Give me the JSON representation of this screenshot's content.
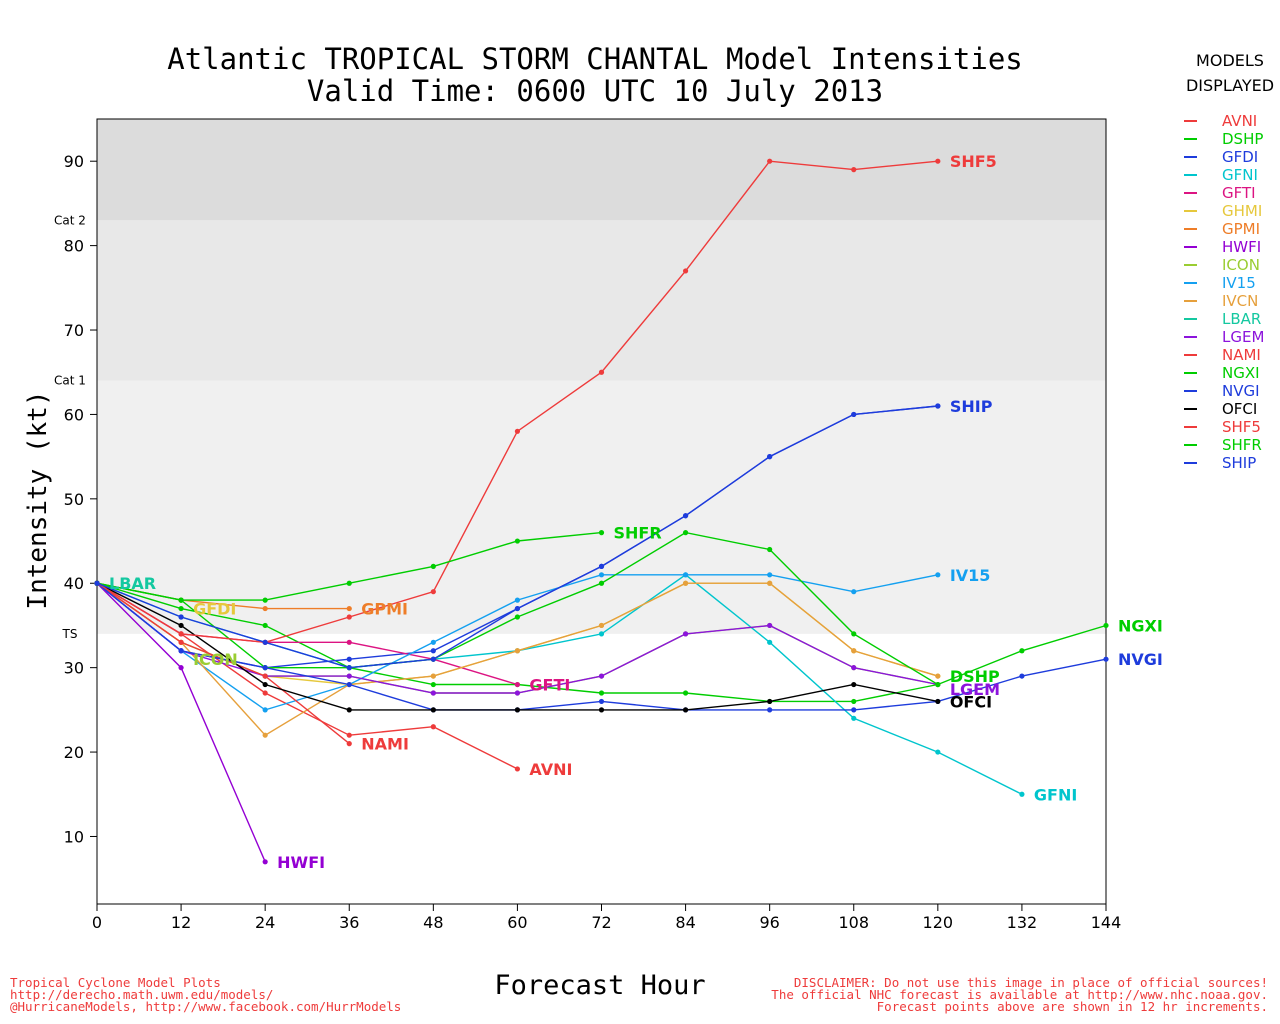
{
  "title": "Atlantic TROPICAL STORM CHANTAL Model Intensities",
  "subtitle": "Valid Time: 0600 UTC 10 July 2013",
  "legend": {
    "header_line1": "MODELS",
    "header_line2": "DISPLAYED",
    "items": [
      {
        "name": "AVNI",
        "color": "#ee3b3b"
      },
      {
        "name": "DSHP",
        "color": "#00cd00"
      },
      {
        "name": "GFDI",
        "color": "#1e3cdc"
      },
      {
        "name": "GFNI",
        "color": "#00c5cd"
      },
      {
        "name": "GFTI",
        "color": "#dc1482"
      },
      {
        "name": "GHMI",
        "color": "#e6c83c"
      },
      {
        "name": "GPMI",
        "color": "#ee7d28"
      },
      {
        "name": "HWFI",
        "color": "#9400d3"
      },
      {
        "name": "ICON",
        "color": "#9acd32"
      },
      {
        "name": "IV15",
        "color": "#14a0f0"
      },
      {
        "name": "IVCN",
        "color": "#e6a03c"
      },
      {
        "name": "LBAR",
        "color": "#14c8a0"
      },
      {
        "name": "LGEM",
        "color": "#8c14dc"
      },
      {
        "name": "NAMI",
        "color": "#ee3b3b"
      },
      {
        "name": "NGXI",
        "color": "#00cd00"
      },
      {
        "name": "NVGI",
        "color": "#1e3cdc"
      },
      {
        "name": "OFCI",
        "color": "#000000"
      },
      {
        "name": "SHF5",
        "color": "#ee3b3b"
      },
      {
        "name": "SHFR",
        "color": "#00cd00"
      },
      {
        "name": "SHIP",
        "color": "#1e3cdc"
      }
    ]
  },
  "footer": {
    "left": [
      "Tropical Cyclone Model Plots",
      "http://derecho.math.uwm.edu/models/",
      "@HurricaneModels, http://www.facebook.com/HurrModels"
    ],
    "right": [
      "DISCLAIMER: Do not use this image in place of official sources!",
      "The official NHC forecast is available at http://www.nhc.noaa.gov.",
      "Forecast points above are shown in 12 hr increments."
    ]
  },
  "chart_data": {
    "type": "line",
    "xlabel": "Forecast Hour",
    "ylabel": "Intensity (kt)",
    "xlim": [
      0,
      144
    ],
    "ylim": [
      2,
      95
    ],
    "xticks": [
      0,
      12,
      24,
      36,
      48,
      60,
      72,
      84,
      96,
      108,
      120,
      132,
      144
    ],
    "yticks": [
      10,
      20,
      30,
      40,
      50,
      60,
      70,
      80,
      90
    ],
    "bands": [
      {
        "from": 2,
        "to": 34,
        "color": "#ffffff"
      },
      {
        "from": 34,
        "to": 64,
        "color": "#f0f0f0"
      },
      {
        "from": 64,
        "to": 83,
        "color": "#e8e8e8"
      },
      {
        "from": 83,
        "to": 95,
        "color": "#dcdcdc"
      }
    ],
    "threshold_labels": [
      {
        "label": "TS",
        "y": 34
      },
      {
        "label": "Cat 1",
        "y": 64
      },
      {
        "label": "Cat 2",
        "y": 83
      }
    ],
    "series": [
      {
        "name": "AVNI",
        "color": "#ee3b3b",
        "x": [
          0,
          12,
          24,
          36,
          48,
          60
        ],
        "y": [
          40,
          34,
          27,
          22,
          23,
          18
        ]
      },
      {
        "name": "DSHP",
        "color": "#00cd00",
        "x": [
          0,
          12,
          24,
          36,
          48,
          60,
          72,
          84,
          96,
          108,
          120
        ],
        "y": [
          40,
          37,
          35,
          30,
          28,
          28,
          27,
          27,
          26,
          26,
          28
        ]
      },
      {
        "name": "GFDI",
        "color": "#1e3cdc",
        "x": [
          0,
          12,
          24,
          36,
          48,
          60,
          72,
          84,
          96,
          108,
          120
        ],
        "y": [
          40,
          32,
          30,
          31,
          32,
          37,
          42,
          48,
          55,
          60,
          61
        ]
      },
      {
        "name": "GFNI",
        "color": "#00c5cd",
        "x": [
          0,
          12,
          24,
          36,
          48,
          60,
          72,
          84,
          96,
          108,
          120,
          132
        ],
        "y": [
          40,
          36,
          33,
          30,
          31,
          32,
          34,
          41,
          33,
          24,
          20,
          15
        ]
      },
      {
        "name": "GFTI",
        "color": "#dc1482",
        "x": [
          0,
          12,
          24,
          36,
          48,
          60
        ],
        "y": [
          40,
          34,
          33,
          33,
          31,
          28
        ]
      },
      {
        "name": "GHMI",
        "color": "#e6c83c",
        "x": [
          0,
          12,
          24,
          36,
          48,
          60,
          72,
          84,
          96,
          108,
          120
        ],
        "y": [
          40,
          33,
          29,
          28,
          29,
          32,
          35,
          40,
          40,
          32,
          29
        ]
      },
      {
        "name": "GPMI",
        "color": "#ee7d28",
        "x": [
          0,
          12,
          24,
          36
        ],
        "y": [
          40,
          38,
          37,
          37
        ]
      },
      {
        "name": "HWFI",
        "color": "#9400d3",
        "x": [
          0,
          12,
          24
        ],
        "y": [
          40,
          30,
          7
        ]
      },
      {
        "name": "ICON",
        "color": "#9acd32",
        "x": [
          0,
          12,
          24,
          36,
          48,
          60,
          72,
          84,
          96,
          108,
          120
        ],
        "y": [
          40,
          33,
          29,
          29,
          27,
          27,
          29,
          34,
          35,
          30,
          28
        ]
      },
      {
        "name": "IV15",
        "color": "#14a0f0",
        "x": [
          0,
          12,
          24,
          36,
          48,
          60,
          72,
          84,
          96,
          108,
          120
        ],
        "y": [
          40,
          32,
          25,
          28,
          33,
          38,
          41,
          41,
          41,
          39,
          41
        ]
      },
      {
        "name": "IVCN",
        "color": "#e6a03c",
        "x": [
          0,
          12,
          24,
          36,
          48,
          60,
          72,
          84,
          96,
          108,
          120
        ],
        "y": [
          40,
          33,
          22,
          28,
          29,
          32,
          35,
          40,
          40,
          32,
          29
        ]
      },
      {
        "name": "LBAR",
        "color": "#14c8a0",
        "x": [
          0
        ],
        "y": [
          40
        ]
      },
      {
        "name": "LGEM",
        "color": "#8c14dc",
        "x": [
          0,
          12,
          24,
          36,
          48,
          60,
          72,
          84,
          96,
          108,
          120
        ],
        "y": [
          40,
          32,
          29,
          29,
          27,
          27,
          29,
          34,
          35,
          30,
          28
        ]
      },
      {
        "name": "NAMI",
        "color": "#ee3b3b",
        "x": [
          0,
          12,
          24,
          36
        ],
        "y": [
          40,
          33,
          29,
          21
        ]
      },
      {
        "name": "NGXI",
        "color": "#00cd00",
        "x": [
          0,
          12,
          24,
          36,
          48,
          60,
          72,
          84,
          96,
          108,
          120,
          132,
          144
        ],
        "y": [
          40,
          38,
          30,
          30,
          31,
          36,
          40,
          46,
          44,
          34,
          28,
          32,
          35
        ]
      },
      {
        "name": "NVGI",
        "color": "#1e3cdc",
        "x": [
          0,
          12,
          24,
          36,
          48,
          60,
          72,
          84,
          96,
          108,
          120,
          132,
          144
        ],
        "y": [
          40,
          32,
          30,
          28,
          25,
          25,
          26,
          25,
          25,
          25,
          26,
          29,
          31
        ]
      },
      {
        "name": "OFCI",
        "color": "#000000",
        "x": [
          0,
          12,
          24,
          36,
          48,
          60,
          72,
          84,
          96,
          108,
          120
        ],
        "y": [
          40,
          35,
          28,
          25,
          25,
          25,
          25,
          25,
          26,
          28,
          26
        ]
      },
      {
        "name": "SHF5",
        "color": "#ee3b3b",
        "x": [
          0,
          12,
          24,
          36,
          48,
          60,
          72,
          84,
          96,
          108,
          120
        ],
        "y": [
          40,
          34,
          33,
          36,
          39,
          58,
          65,
          77,
          90,
          89,
          90
        ]
      },
      {
        "name": "SHFR",
        "color": "#00cd00",
        "x": [
          0,
          12,
          24,
          36,
          48,
          60,
          72
        ],
        "y": [
          40,
          38,
          38,
          40,
          42,
          45,
          46
        ]
      },
      {
        "name": "SHIP",
        "color": "#1e3cdc",
        "x": [
          0,
          12,
          24,
          36,
          48,
          60,
          72,
          84,
          96,
          108,
          120
        ],
        "y": [
          40,
          36,
          33,
          30,
          31,
          37,
          42,
          48,
          55,
          60,
          61
        ]
      }
    ],
    "end_labels": [
      {
        "text": "SHF5",
        "x": 120,
        "y": 90,
        "color": "#ee3b3b"
      },
      {
        "text": "SHIP",
        "x": 120,
        "y": 61,
        "color": "#1e3cdc"
      },
      {
        "text": "SHFR",
        "x": 72,
        "y": 46,
        "color": "#00cd00"
      },
      {
        "text": "IV15",
        "x": 120,
        "y": 41,
        "color": "#14a0f0"
      },
      {
        "text": "LBAR",
        "x": 0,
        "y": 40,
        "color": "#14c8a0"
      },
      {
        "text": "GPMI",
        "x": 36,
        "y": 37,
        "color": "#ee7d28"
      },
      {
        "text": "GFDI",
        "x": 12,
        "y": 37,
        "color": "#e6c83c"
      },
      {
        "text": "ICON",
        "x": 12,
        "y": 31,
        "color": "#9acd32"
      },
      {
        "text": "NGXI",
        "x": 144,
        "y": 35,
        "color": "#00cd00"
      },
      {
        "text": "NVGI",
        "x": 144,
        "y": 31,
        "color": "#1e3cdc"
      },
      {
        "text": "DSHP",
        "x": 120,
        "y": 29,
        "color": "#00cd00"
      },
      {
        "text": "LGEM",
        "x": 120,
        "y": 27.5,
        "color": "#8c14dc"
      },
      {
        "text": "OFCI",
        "x": 120,
        "y": 26,
        "color": "#000000"
      },
      {
        "text": "GFTI",
        "x": 60,
        "y": 28,
        "color": "#dc1482"
      },
      {
        "text": "NAMI",
        "x": 36,
        "y": 21,
        "color": "#ee3b3b"
      },
      {
        "text": "AVNI",
        "x": 60,
        "y": 18,
        "color": "#ee3b3b"
      },
      {
        "text": "GFNI",
        "x": 132,
        "y": 15,
        "color": "#00c5cd"
      },
      {
        "text": "HWFI",
        "x": 24,
        "y": 7,
        "color": "#9400d3"
      }
    ]
  }
}
